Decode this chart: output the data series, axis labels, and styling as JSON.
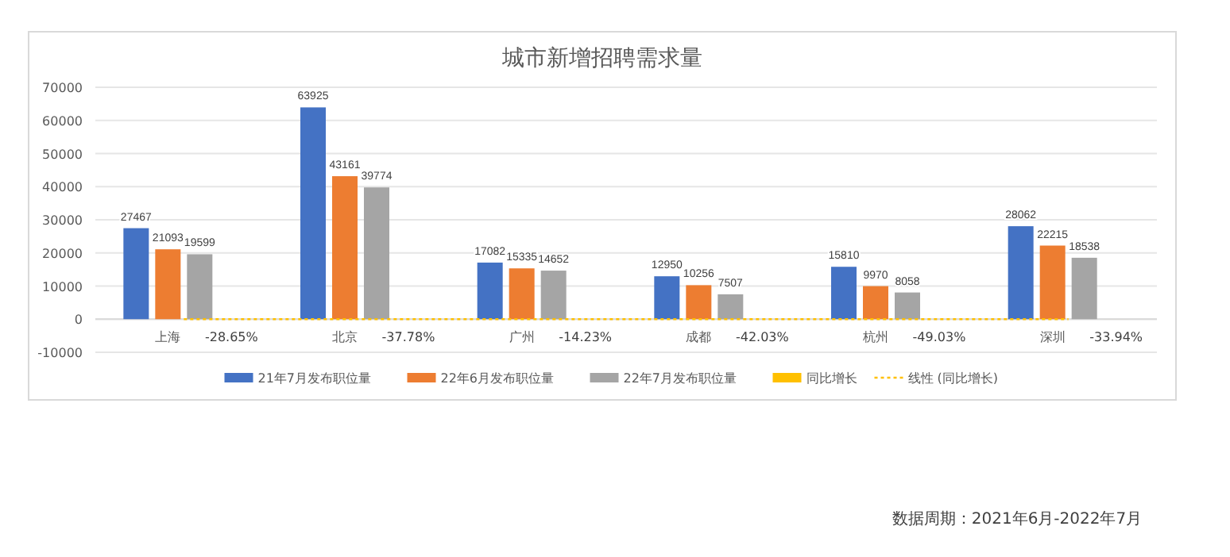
{
  "chart_data": {
    "type": "bar",
    "title": "城市新增招聘需求量",
    "categories": [
      "上海",
      "北京",
      "广州",
      "成都",
      "杭州",
      "深圳"
    ],
    "series": [
      {
        "name": "21年7月发布职位量",
        "color": "#4472c4",
        "values": [
          27467,
          63925,
          17082,
          12950,
          15810,
          28062
        ]
      },
      {
        "name": "22年6月发布职位量",
        "color": "#ed7d31",
        "values": [
          21093,
          43161,
          15335,
          10256,
          9970,
          22215
        ]
      },
      {
        "name": "22年7月发布职位量",
        "color": "#a5a5a5",
        "values": [
          19599,
          39774,
          14652,
          7507,
          8058,
          18538
        ]
      },
      {
        "name": "同比增长",
        "color": "#ffc000",
        "values": [
          -0.2865,
          -0.3778,
          -0.1423,
          -0.4203,
          -0.4903,
          -0.3394
        ],
        "value_labels": [
          "-28.65%",
          "-37.78%",
          "-14.23%",
          "-42.03%",
          "-49.03%",
          "-33.94%"
        ]
      },
      {
        "name": "线性 (同比增长)",
        "type": "line",
        "line_style": "dotted",
        "color": "#ffc000",
        "values": [
          -0.28,
          -0.31,
          -0.33,
          -0.36,
          -0.38,
          -0.41
        ],
        "value_labels": [
          null,
          null,
          null,
          null,
          null,
          null
        ]
      }
    ],
    "ylim": [
      -10000,
      70000
    ],
    "yticks": [
      -10000,
      0,
      10000,
      20000,
      30000,
      40000,
      50000,
      60000,
      70000
    ],
    "grid": "y",
    "legend": "bottom",
    "data_labels": true,
    "annotations": [
      "数据周期：2021年6月-2022年7月"
    ]
  }
}
